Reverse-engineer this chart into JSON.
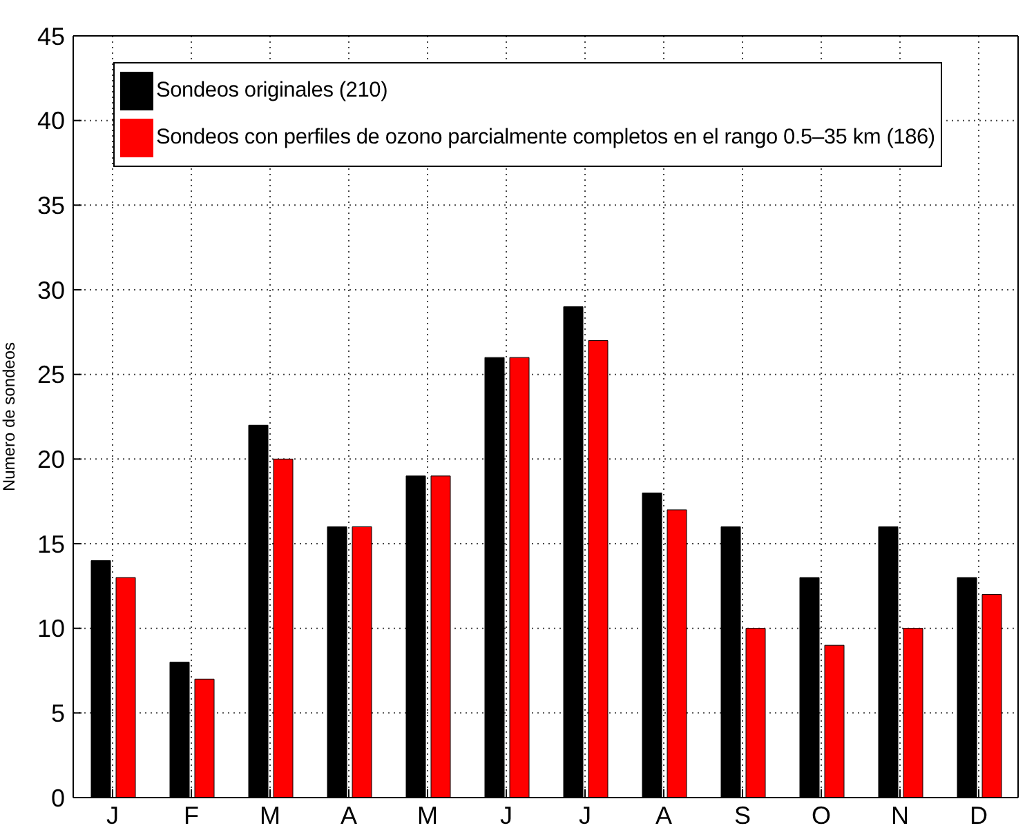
{
  "chart_data": {
    "type": "bar",
    "ylabel": "Numero de sondeos",
    "categories": [
      "J",
      "F",
      "M",
      "A",
      "M",
      "J",
      "J",
      "A",
      "S",
      "O",
      "N",
      "D"
    ],
    "series": [
      {
        "name": "Sondeos originales (210)",
        "color": "#000000",
        "values": [
          14,
          8,
          22,
          16,
          19,
          26,
          29,
          18,
          16,
          13,
          16,
          13
        ]
      },
      {
        "name": "Sondeos con perfiles de ozono parcialmente completos en el rango 0.5–35 km (186)",
        "color": "#ff0000",
        "values": [
          13,
          7,
          20,
          16,
          19,
          26,
          27,
          17,
          10,
          9,
          10,
          12
        ]
      }
    ],
    "ylim": [
      0,
      45
    ],
    "yticks": [
      0,
      5,
      10,
      15,
      20,
      25,
      30,
      35,
      40,
      45
    ],
    "grid": true,
    "legend": "top left"
  }
}
